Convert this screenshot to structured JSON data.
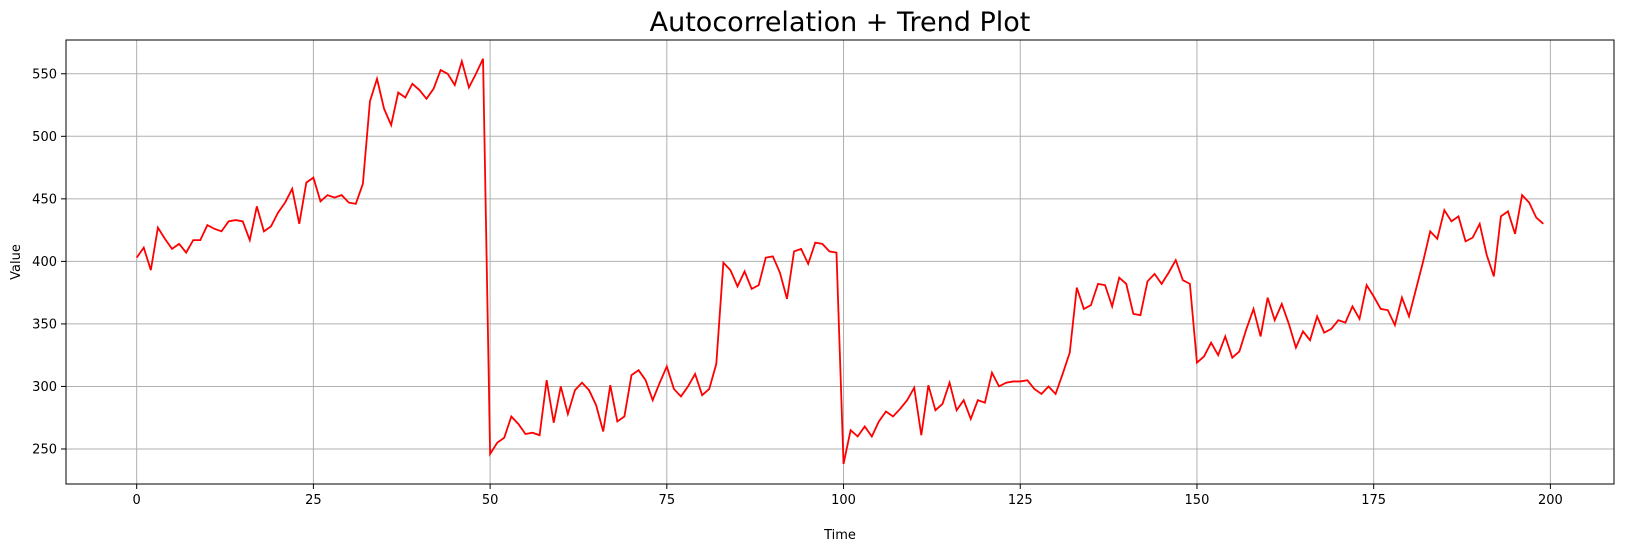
{
  "chart_data": {
    "type": "line",
    "title": "Autocorrelation + Trend Plot",
    "xlabel": "Time",
    "ylabel": "Value",
    "xlim": [
      -10,
      209
    ],
    "ylim": [
      222,
      577
    ],
    "grid": true,
    "color": "#ff0000",
    "x_ticks": [
      0,
      25,
      50,
      75,
      100,
      125,
      150,
      175,
      200
    ],
    "y_ticks": [
      250,
      300,
      350,
      400,
      450,
      500,
      550
    ],
    "series": [
      {
        "values": [
          403,
          411,
          393,
          427,
          418,
          410,
          414,
          407,
          417,
          417,
          429,
          426,
          424,
          432,
          433,
          432,
          417,
          444,
          424,
          428,
          439,
          447,
          458,
          430,
          463,
          467,
          448,
          453,
          451,
          453,
          447,
          446,
          462,
          528,
          546,
          522,
          509,
          535,
          531,
          542,
          537,
          530,
          538,
          553,
          550,
          541,
          560,
          539,
          550,
          562,
          246,
          255,
          259,
          276,
          270,
          262,
          263,
          261,
          305,
          271,
          300,
          278,
          297,
          303,
          297,
          285,
          264,
          301,
          272,
          276,
          309,
          313,
          305,
          289,
          303,
          316,
          298,
          292,
          300,
          310,
          293,
          298,
          318,
          399,
          393,
          380,
          392,
          378,
          381,
          403,
          404,
          391,
          370,
          408,
          410,
          398,
          415,
          414,
          408,
          407,
          238,
          265,
          260,
          268,
          260,
          272,
          280,
          276,
          282,
          289,
          299,
          261,
          301,
          281,
          286,
          303,
          281,
          289,
          274,
          289,
          287,
          311,
          300,
          303,
          304,
          304,
          305,
          298,
          294,
          300,
          294,
          310,
          327,
          379,
          362,
          365,
          382,
          381,
          364,
          387,
          382,
          358,
          357,
          384,
          390,
          382,
          391,
          401,
          385,
          382,
          319,
          324,
          335,
          325,
          340,
          323,
          328,
          346,
          362,
          340,
          371,
          353,
          366,
          350,
          331,
          344,
          337,
          356,
          343,
          346,
          353,
          351,
          364,
          354,
          381,
          372,
          362,
          361,
          349,
          371,
          356,
          378,
          400,
          424,
          418,
          441,
          432,
          436,
          416,
          419,
          430,
          405,
          388,
          436,
          440,
          422,
          453,
          447,
          435,
          430
        ]
      }
    ]
  }
}
